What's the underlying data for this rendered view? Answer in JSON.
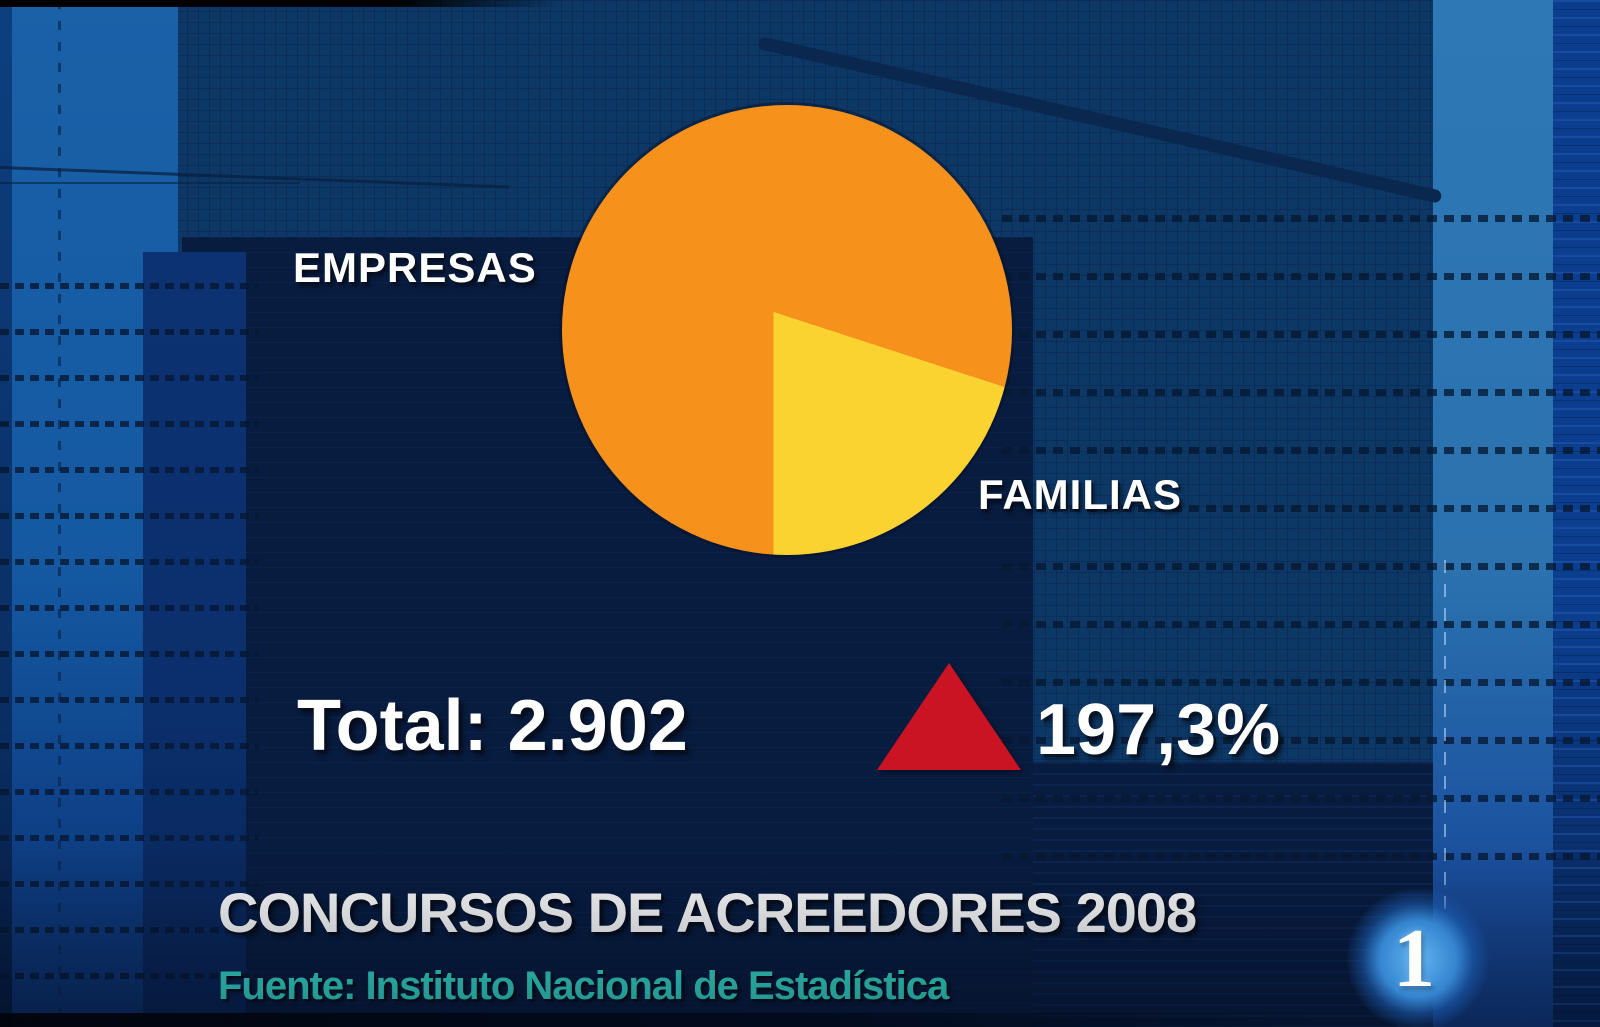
{
  "chart_data": {
    "type": "pie",
    "title": "CONCURSOS DE ACREEDORES 2008",
    "source_label": "Fuente: Instituto Nacional de Estadística",
    "total_label": "Total: 2.902",
    "total_value": 2902,
    "change": {
      "label": "197,3%",
      "direction": "up",
      "color": "#CB1423"
    },
    "slices": [
      {
        "label": "EMPRESAS",
        "percent": 80,
        "color": "#F6921C"
      },
      {
        "label": "FAMILIAS",
        "percent": 20,
        "color": "#FBD331"
      }
    ],
    "legend_position": "labels-adjacent-to-slices"
  },
  "branding": {
    "channel_number": "1"
  }
}
